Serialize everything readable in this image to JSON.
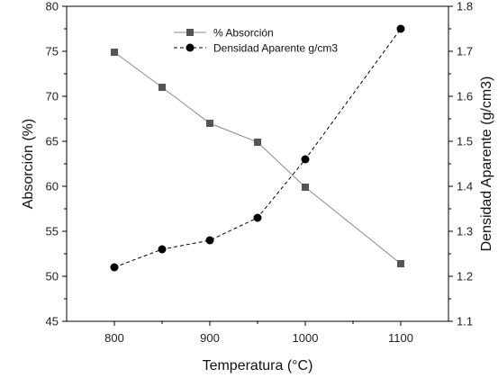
{
  "chart_data": {
    "type": "line",
    "xlabel": "Temperatura (°C)",
    "ylabel_left": "Absorción (%)",
    "ylabel_right": "Densidad Aparente (g/cm3)",
    "xlim": [
      750,
      1150
    ],
    "x_ticks": [
      800,
      900,
      1000,
      1100
    ],
    "ylim_left": [
      45,
      80
    ],
    "y_ticks_left": [
      45,
      50,
      55,
      60,
      65,
      70,
      75,
      80
    ],
    "ylim_right": [
      1.1,
      1.8
    ],
    "y_ticks_right": [
      "1.1",
      "1.2",
      "1.3",
      "1.4",
      "1.5",
      "1.6",
      "1.7",
      "1.8"
    ],
    "grid": false,
    "legend_position": "top-center",
    "x": [
      800,
      850,
      900,
      950,
      1000,
      1100
    ],
    "series": [
      {
        "name": "% Absorción",
        "axis": "left",
        "marker": "square",
        "line_style": "solid",
        "color": "#555555",
        "values": [
          74.9,
          71.0,
          67.0,
          64.9,
          59.9,
          51.4
        ]
      },
      {
        "name": "Densidad Aparente g/cm3",
        "axis": "right",
        "marker": "circle",
        "line_style": "dashed",
        "color": "#000000",
        "values": [
          1.22,
          1.26,
          1.28,
          1.33,
          1.46,
          1.75
        ]
      }
    ]
  }
}
